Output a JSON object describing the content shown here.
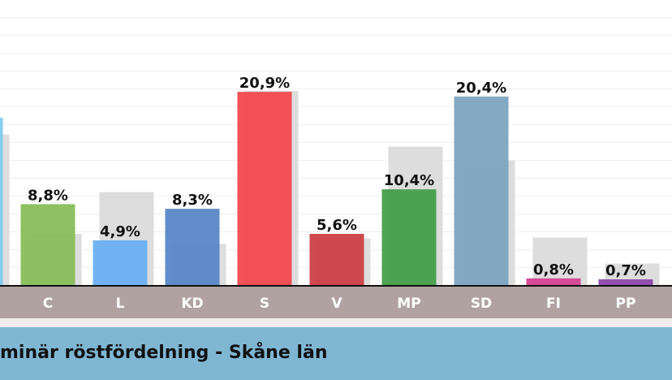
{
  "chart_data": {
    "type": "bar",
    "title": "minär röstfördelning - Skåne län",
    "categories": [
      null,
      "C",
      "L",
      "KD",
      "S",
      "V",
      "MP",
      "SD",
      "FI",
      "PP"
    ],
    "colors": [
      "#7ccbec",
      "#86bb55",
      "#66aef2",
      "#5583c6",
      "#f2434a",
      "#cc3a40",
      "#3f9c43",
      "#7aa2be",
      "#d43e90",
      "#8a42aa"
    ],
    "ylim": [
      0,
      30.8
    ],
    "series": [
      {
        "color": "#dddddd",
        "values": [
          16.3,
          5.6,
          10.1,
          4.5,
          21.0,
          5.1,
          15.0,
          13.5,
          5.2,
          2.4
        ]
      },
      {
        "values": [
          18.1,
          8.8,
          4.9,
          8.3,
          20.9,
          5.6,
          10.4,
          20.4,
          0.8,
          0.7
        ],
        "value_labels": [
          null,
          "8,8%",
          "4,9%",
          "8,3%",
          "20,9%",
          "5,6%",
          "10,4%",
          "20,4%",
          "0,8%",
          "0,7%"
        ]
      }
    ]
  }
}
